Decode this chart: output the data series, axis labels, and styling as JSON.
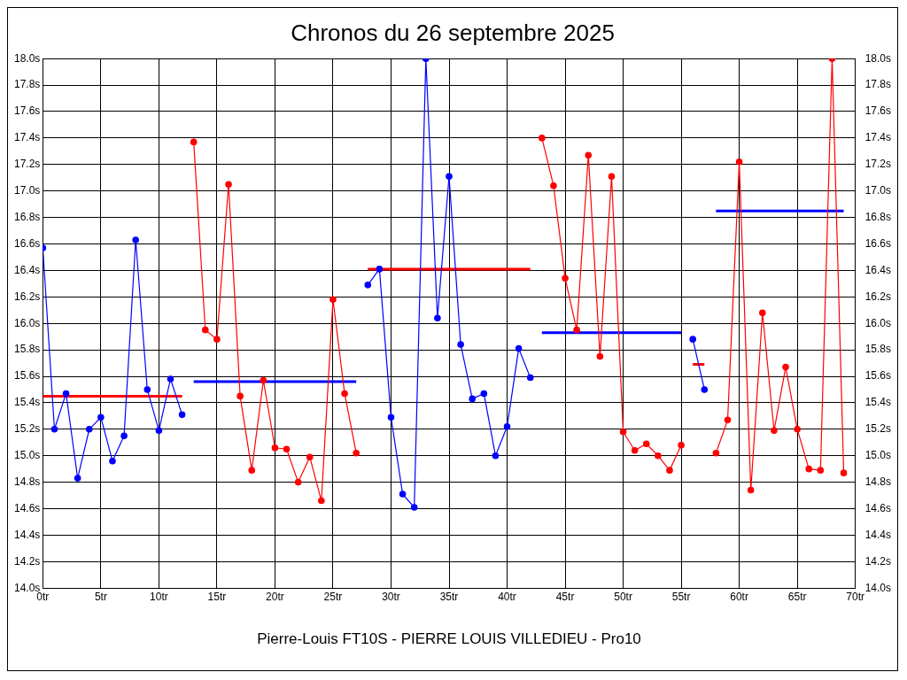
{
  "chart_data": {
    "type": "line",
    "title": "Chronos du 26 septembre 2025",
    "xlabel": "Pierre-Louis FT10S - PIERRE LOUIS VILLEDIEU - Pro10",
    "xlim": [
      0,
      70
    ],
    "xticks": [
      {
        "value": 0,
        "label": "0tr"
      },
      {
        "value": 5,
        "label": "5tr"
      },
      {
        "value": 10,
        "label": "10tr"
      },
      {
        "value": 15,
        "label": "15tr"
      },
      {
        "value": 20,
        "label": "20tr"
      },
      {
        "value": 25,
        "label": "25tr"
      },
      {
        "value": 30,
        "label": "30tr"
      },
      {
        "value": 35,
        "label": "35tr"
      },
      {
        "value": 40,
        "label": "40tr"
      },
      {
        "value": 45,
        "label": "45tr"
      },
      {
        "value": 50,
        "label": "50tr"
      },
      {
        "value": 55,
        "label": "55tr"
      },
      {
        "value": 60,
        "label": "60tr"
      },
      {
        "value": 65,
        "label": "65tr"
      },
      {
        "value": 70,
        "label": "70tr"
      }
    ],
    "ylim": [
      14,
      18
    ],
    "yticks": [
      {
        "value": 14,
        "label": "14.0s"
      },
      {
        "value": 14.2,
        "label": "14.2s"
      },
      {
        "value": 14.4,
        "label": "14.4s"
      },
      {
        "value": 14.6,
        "label": "14.6s"
      },
      {
        "value": 14.8,
        "label": "14.8s"
      },
      {
        "value": 15,
        "label": "15.0s"
      },
      {
        "value": 15.2,
        "label": "15.2s"
      },
      {
        "value": 15.4,
        "label": "15.4s"
      },
      {
        "value": 15.6,
        "label": "15.6s"
      },
      {
        "value": 15.8,
        "label": "15.8s"
      },
      {
        "value": 16,
        "label": "16.0s"
      },
      {
        "value": 16.2,
        "label": "16.2s"
      },
      {
        "value": 16.4,
        "label": "16.4s"
      },
      {
        "value": 16.6,
        "label": "16.6s"
      },
      {
        "value": 16.8,
        "label": "16.8s"
      },
      {
        "value": 17,
        "label": "17.0s"
      },
      {
        "value": 17.2,
        "label": "17.2s"
      },
      {
        "value": 17.4,
        "label": "17.4s"
      },
      {
        "value": 17.6,
        "label": "17.6s"
      },
      {
        "value": 17.8,
        "label": "17.8s"
      },
      {
        "value": 18,
        "label": "18.0s"
      }
    ],
    "y2lim": [
      14,
      18
    ],
    "y2ticks": [
      {
        "value": 14,
        "label": "14.0s"
      },
      {
        "value": 14.2,
        "label": "14.2s"
      },
      {
        "value": 14.4,
        "label": "14.4s"
      },
      {
        "value": 14.6,
        "label": "14.6s"
      },
      {
        "value": 14.8,
        "label": "14.8s"
      },
      {
        "value": 15,
        "label": "15.0s"
      },
      {
        "value": 15.2,
        "label": "15.2s"
      },
      {
        "value": 15.4,
        "label": "15.4s"
      },
      {
        "value": 15.6,
        "label": "15.6s"
      },
      {
        "value": 15.8,
        "label": "15.8s"
      },
      {
        "value": 16,
        "label": "16.0s"
      },
      {
        "value": 16.2,
        "label": "16.2s"
      },
      {
        "value": 16.4,
        "label": "16.4s"
      },
      {
        "value": 16.6,
        "label": "16.6s"
      },
      {
        "value": 16.8,
        "label": "16.8s"
      },
      {
        "value": 17,
        "label": "17.0s"
      },
      {
        "value": 17.2,
        "label": "17.2s"
      },
      {
        "value": 17.4,
        "label": "17.4s"
      },
      {
        "value": 17.6,
        "label": "17.6s"
      },
      {
        "value": 17.8,
        "label": "17.8s"
      },
      {
        "value": 18,
        "label": "18.0s"
      }
    ],
    "grid": true,
    "legend": false,
    "marker": "circle",
    "line_style": "solid",
    "series": [
      {
        "color": "#0000ff",
        "x": [
          0,
          1,
          2,
          3,
          4,
          5,
          6,
          7,
          8,
          9,
          10,
          11,
          12
        ],
        "values": [
          16.57,
          15.2,
          15.47,
          14.83,
          15.2,
          15.29,
          14.96,
          15.15,
          16.63,
          15.5,
          15.19,
          15.58,
          15.31
        ]
      },
      {
        "color": "#ff0000",
        "x": [
          13,
          14,
          15,
          16,
          17,
          18,
          19,
          20,
          21,
          22,
          23,
          24,
          25,
          26,
          27
        ],
        "values": [
          17.37,
          15.95,
          15.88,
          17.05,
          15.45,
          14.89,
          15.57,
          15.06,
          15.05,
          14.8,
          14.99,
          14.66,
          16.18,
          15.47,
          15.02
        ]
      },
      {
        "color": "#0000ff",
        "x": [
          28,
          29,
          30,
          31,
          32,
          33,
          34,
          35,
          36,
          37,
          38,
          39,
          40,
          41,
          42
        ],
        "values": [
          16.29,
          16.41,
          15.29,
          14.71,
          14.61,
          18.0,
          16.04,
          17.11,
          15.84,
          15.43,
          15.47,
          15.0,
          15.22,
          15.81,
          15.59
        ]
      },
      {
        "color": "#ff0000",
        "x": [
          43,
          44,
          45,
          46,
          47,
          48,
          49,
          50,
          51,
          52,
          53,
          54,
          55
        ],
        "values": [
          17.4,
          17.04,
          16.34,
          15.95,
          17.27,
          15.75,
          17.11,
          15.18,
          15.04,
          15.09,
          15.0,
          14.89,
          15.08
        ]
      },
      {
        "color": "#0000ff",
        "x": [
          56,
          57
        ],
        "values": [
          15.88,
          15.5
        ]
      },
      {
        "color": "#ff0000",
        "x": [
          58,
          59,
          60,
          61,
          62,
          63,
          64,
          65,
          66,
          67,
          68,
          69
        ],
        "values": [
          15.02,
          15.27,
          17.22,
          14.74,
          16.08,
          15.19,
          15.67,
          15.2,
          14.9,
          14.89,
          18.0,
          14.87
        ]
      },
      {
        "color": "#ff0000",
        "marker": "none",
        "x": [
          0,
          12
        ],
        "values": [
          15.45,
          15.45
        ]
      },
      {
        "color": "#0000ff",
        "marker": "none",
        "x": [
          13,
          27
        ],
        "values": [
          15.56,
          15.56
        ]
      },
      {
        "color": "#ff0000",
        "marker": "none",
        "x": [
          28,
          42
        ],
        "values": [
          16.41,
          16.41
        ]
      },
      {
        "color": "#0000ff",
        "marker": "none",
        "x": [
          43,
          55
        ],
        "values": [
          15.93,
          15.93
        ]
      },
      {
        "color": "#ff0000",
        "marker": "none",
        "x": [
          56,
          57
        ],
        "values": [
          15.69,
          15.69
        ]
      },
      {
        "color": "#0000ff",
        "marker": "none",
        "x": [
          58,
          69
        ],
        "values": [
          16.85,
          16.85
        ]
      }
    ]
  }
}
